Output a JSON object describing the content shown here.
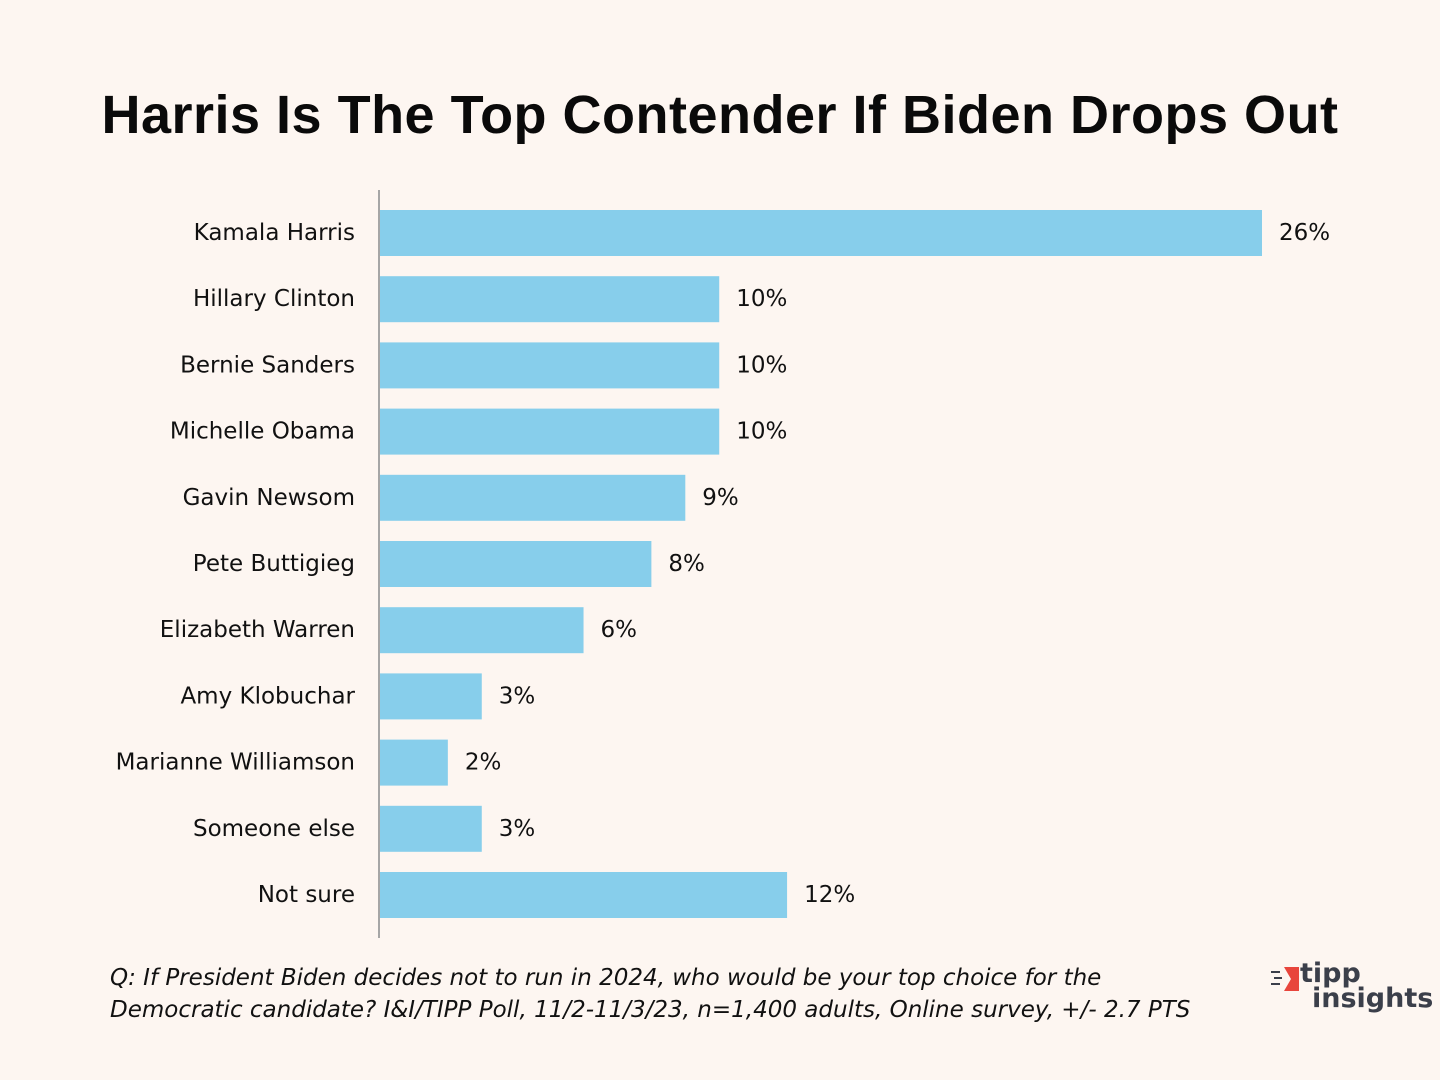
{
  "title": "Harris Is The Top Contender If Biden Drops Out",
  "chart_data": {
    "type": "bar",
    "orientation": "horizontal",
    "title": "Harris Is The Top Contender If Biden Drops Out",
    "categories": [
      "Kamala Harris",
      "Hillary Clinton",
      "Bernie Sanders",
      "Michelle Obama",
      "Gavin Newsom",
      "Pete Buttigieg",
      "Elizabeth Warren",
      "Amy Klobuchar",
      "Marianne Williamson",
      "Someone else",
      "Not sure"
    ],
    "values": [
      26,
      10,
      10,
      10,
      9,
      8,
      6,
      3,
      2,
      3,
      12
    ],
    "value_labels": [
      "26%",
      "10%",
      "10%",
      "10%",
      "9%",
      "8%",
      "6%",
      "3%",
      "2%",
      "3%",
      "12%"
    ],
    "xlabel": "",
    "ylabel": "",
    "xlim": [
      0,
      26
    ],
    "grid": false,
    "bar_color": "#87ceeb",
    "axis_color": "#a6a6a6"
  },
  "footnote": {
    "line1": "Q: If President Biden decides not to run in 2024, who would be your top choice for the",
    "line2": "Democratic candidate? I&I/TIPP Poll, 11/2-11/3/23, n=1,400 adults, Online survey, +/- 2.7 PTS"
  },
  "logo": {
    "line1": "tipp",
    "line2": "insights",
    "accent_color": "#e8453c",
    "text_color": "#3b3f4a"
  },
  "colors": {
    "background": "#fdf6f1"
  }
}
